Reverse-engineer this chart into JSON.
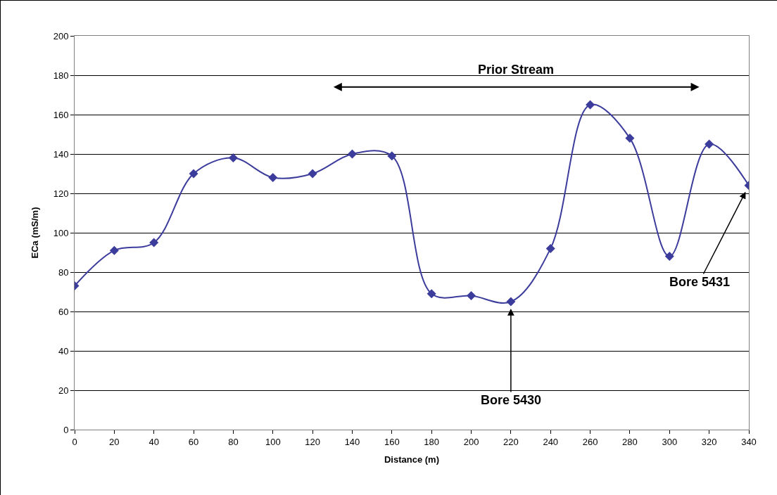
{
  "chart_data": {
    "type": "line",
    "xlabel": "Distance (m)",
    "ylabel": "ECa (mS/m)",
    "x": [
      0,
      20,
      40,
      60,
      80,
      100,
      120,
      140,
      160,
      180,
      200,
      220,
      240,
      260,
      280,
      300,
      320,
      340
    ],
    "series": [
      {
        "color": "#3c3c9c",
        "values": [
          73,
          91,
          95,
          130,
          138,
          128,
          130,
          140,
          139,
          69,
          68,
          65,
          92,
          165,
          148,
          88,
          145,
          124
        ]
      }
    ],
    "xlim": [
      0,
      340
    ],
    "xticks": [
      0,
      20,
      40,
      60,
      80,
      100,
      120,
      140,
      160,
      180,
      200,
      220,
      240,
      260,
      280,
      300,
      320,
      340
    ],
    "ylim": [
      0,
      200
    ],
    "yticks": [
      0,
      20,
      40,
      60,
      80,
      100,
      120,
      140,
      160,
      180,
      200
    ],
    "grid": "y",
    "marker": "diamond",
    "line_style": "solid",
    "annotations": [
      "Prior Stream",
      {
        "text": "Bore 5430",
        "x": 220,
        "y": 65
      },
      {
        "text": "Bore 5431",
        "x": 340,
        "y": 124
      }
    ]
  }
}
